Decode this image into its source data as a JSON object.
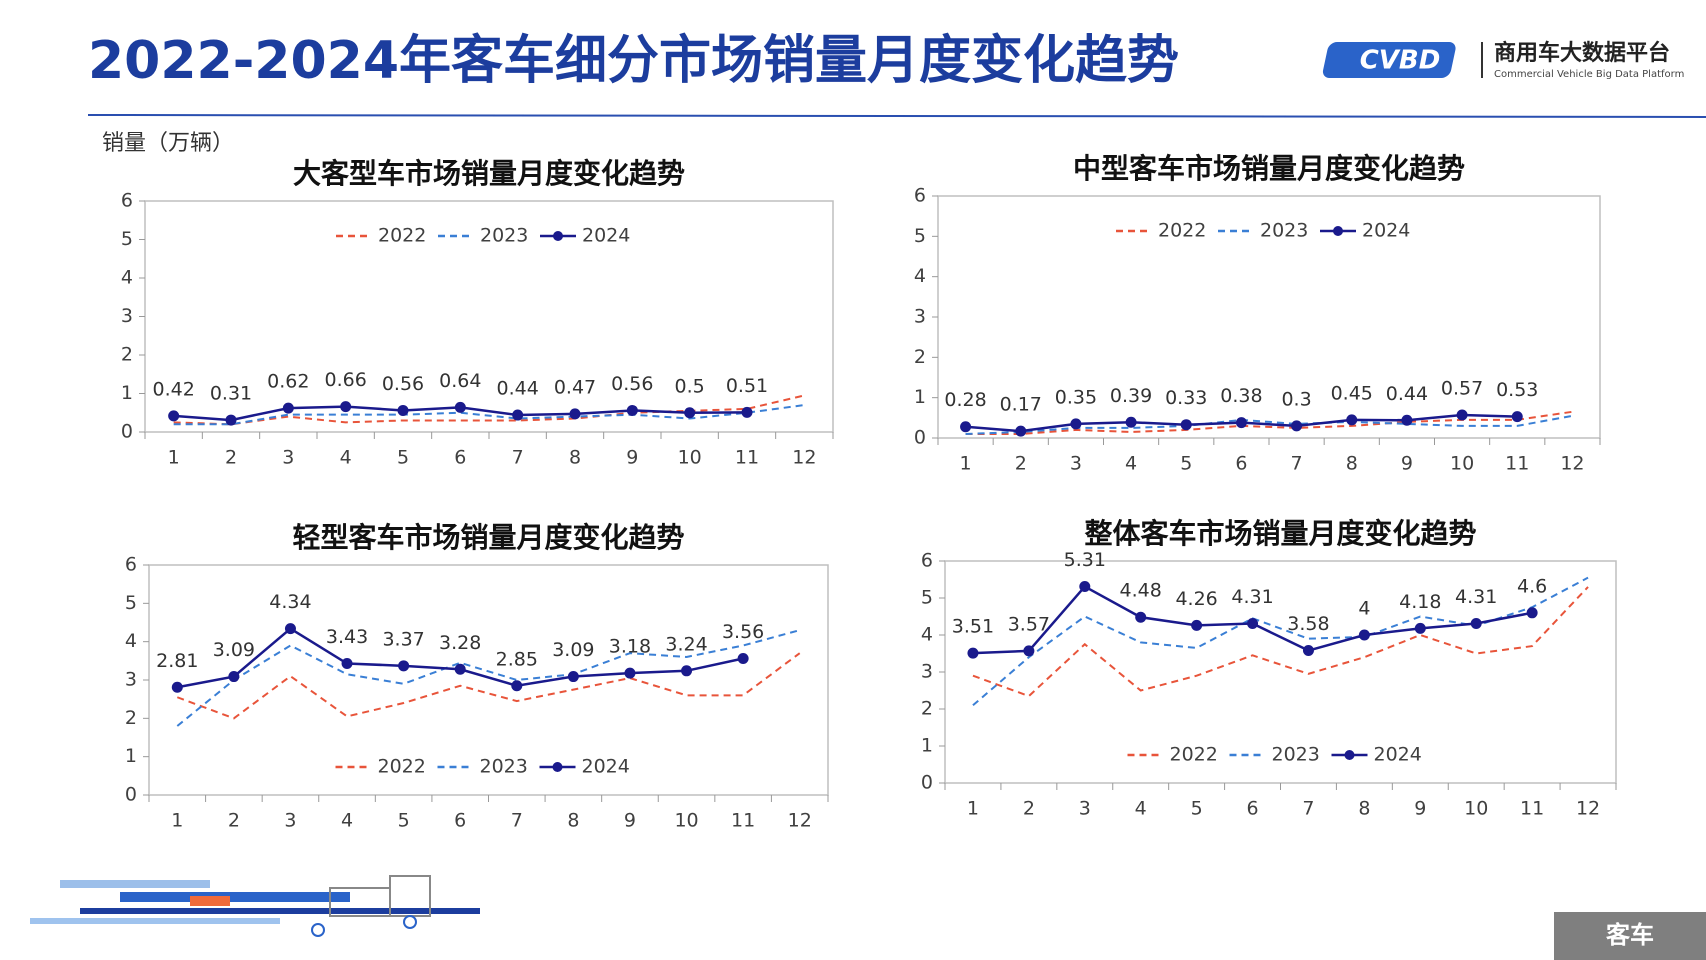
{
  "header": {
    "title": "2022-2024年客车细分市场销量月度变化趋势",
    "logo_mark": "CVBD",
    "logo_text": "商用车大数据平台",
    "logo_subtitle": "Commercial Vehicle Big Data Platform"
  },
  "unit_label": "销量（万辆）",
  "footer_label": "客车",
  "chart_data": [
    {
      "type": "line",
      "title": "大客型车市场销量月度变化趋势",
      "categories": [
        "1",
        "2",
        "3",
        "4",
        "5",
        "6",
        "7",
        "8",
        "9",
        "10",
        "11",
        "12"
      ],
      "ylim": [
        0,
        6
      ],
      "yticks": [
        0,
        1,
        2,
        3,
        4,
        5,
        6
      ],
      "legend": "upper center",
      "series": [
        {
          "name": "2022",
          "color": "#e8543a",
          "style": "dashed",
          "values": [
            0.25,
            0.2,
            0.4,
            0.25,
            0.3,
            0.3,
            0.3,
            0.35,
            0.5,
            0.55,
            0.6,
            0.95
          ]
        },
        {
          "name": "2023",
          "color": "#3a7fd5",
          "style": "dashed",
          "values": [
            0.2,
            0.2,
            0.45,
            0.45,
            0.45,
            0.5,
            0.35,
            0.4,
            0.45,
            0.35,
            0.5,
            0.7
          ]
        },
        {
          "name": "2024",
          "color": "#1a1a8c",
          "style": "solid",
          "marker": true,
          "data_labels": true,
          "values": [
            0.42,
            0.31,
            0.62,
            0.66,
            0.56,
            0.64,
            0.44,
            0.47,
            0.56,
            0.5,
            0.51,
            null
          ]
        }
      ]
    },
    {
      "type": "line",
      "title": "中型客车市场销量月度变化趋势",
      "categories": [
        "1",
        "2",
        "3",
        "4",
        "5",
        "6",
        "7",
        "8",
        "9",
        "10",
        "11",
        "12"
      ],
      "ylim": [
        0,
        6
      ],
      "yticks": [
        0,
        1,
        2,
        3,
        4,
        5,
        6
      ],
      "legend": "upper center",
      "series": [
        {
          "name": "2022",
          "color": "#e8543a",
          "style": "dashed",
          "values": [
            0.1,
            0.1,
            0.2,
            0.15,
            0.2,
            0.3,
            0.25,
            0.3,
            0.4,
            0.45,
            0.45,
            0.65
          ]
        },
        {
          "name": "2023",
          "color": "#3a7fd5",
          "style": "dashed",
          "values": [
            0.1,
            0.15,
            0.25,
            0.25,
            0.3,
            0.45,
            0.35,
            0.4,
            0.35,
            0.3,
            0.3,
            0.55
          ]
        },
        {
          "name": "2024",
          "color": "#1a1a8c",
          "style": "solid",
          "marker": true,
          "data_labels": true,
          "values": [
            0.28,
            0.17,
            0.35,
            0.39,
            0.33,
            0.38,
            0.3,
            0.45,
            0.44,
            0.57,
            0.53,
            null
          ]
        }
      ]
    },
    {
      "type": "line",
      "title": "轻型客车市场销量月度变化趋势",
      "categories": [
        "1",
        "2",
        "3",
        "4",
        "5",
        "6",
        "7",
        "8",
        "9",
        "10",
        "11",
        "12"
      ],
      "ylim": [
        0,
        6
      ],
      "yticks": [
        0,
        1,
        2,
        3,
        4,
        5,
        6
      ],
      "legend": "lower center",
      "series": [
        {
          "name": "2022",
          "color": "#e8543a",
          "style": "dashed",
          "values": [
            2.55,
            2.0,
            3.1,
            2.05,
            2.4,
            2.85,
            2.45,
            2.75,
            3.05,
            2.6,
            2.6,
            3.7
          ]
        },
        {
          "name": "2023",
          "color": "#3a7fd5",
          "style": "dashed",
          "values": [
            1.8,
            3.0,
            3.9,
            3.15,
            2.9,
            3.45,
            3.0,
            3.15,
            3.7,
            3.6,
            3.9,
            4.3
          ]
        },
        {
          "name": "2024",
          "color": "#1a1a8c",
          "style": "solid",
          "marker": true,
          "data_labels": true,
          "values": [
            2.81,
            3.09,
            4.34,
            3.43,
            3.37,
            3.28,
            2.85,
            3.09,
            3.18,
            3.24,
            3.56,
            null
          ]
        }
      ]
    },
    {
      "type": "line",
      "title": "整体客车市场销量月度变化趋势",
      "categories": [
        "1",
        "2",
        "3",
        "4",
        "5",
        "6",
        "7",
        "8",
        "9",
        "10",
        "11",
        "12"
      ],
      "ylim": [
        0,
        6
      ],
      "yticks": [
        0,
        1,
        2,
        3,
        4,
        5,
        6
      ],
      "legend": "lower center",
      "series": [
        {
          "name": "2022",
          "color": "#e8543a",
          "style": "dashed",
          "values": [
            2.9,
            2.35,
            3.75,
            2.5,
            2.9,
            3.45,
            2.95,
            3.4,
            4.0,
            3.5,
            3.7,
            5.3
          ]
        },
        {
          "name": "2023",
          "color": "#3a7fd5",
          "style": "dashed",
          "values": [
            2.1,
            3.4,
            4.5,
            3.8,
            3.65,
            4.45,
            3.9,
            3.95,
            4.5,
            4.25,
            4.75,
            5.55
          ]
        },
        {
          "name": "2024",
          "color": "#1a1a8c",
          "style": "solid",
          "marker": true,
          "data_labels": true,
          "values": [
            3.51,
            3.57,
            5.31,
            4.48,
            4.26,
            4.31,
            3.58,
            4,
            4.18,
            4.31,
            4.6,
            null
          ]
        }
      ]
    }
  ]
}
